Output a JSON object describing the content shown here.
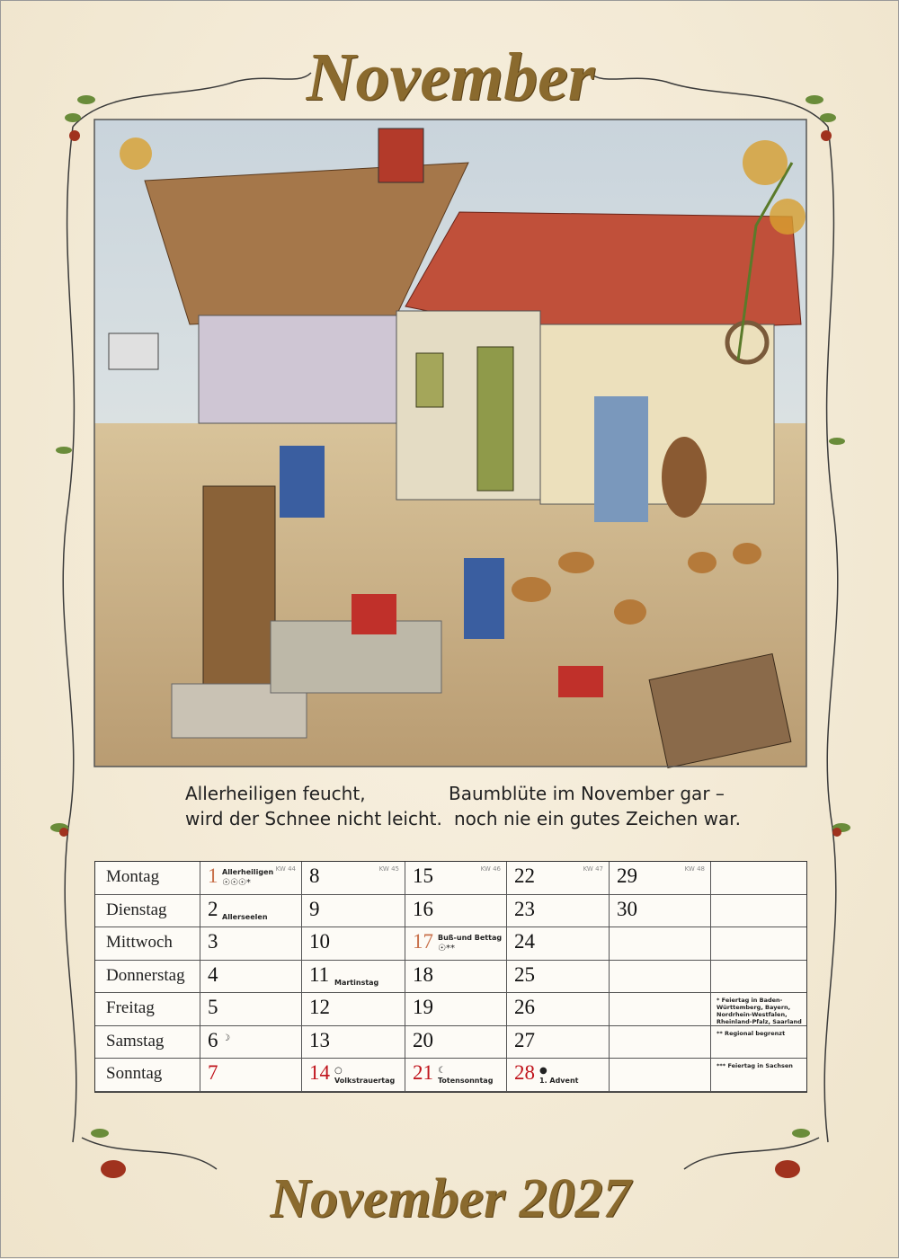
{
  "header": {
    "title": "November"
  },
  "quotes": [
    {
      "lines": [
        "Allerheiligen feucht,",
        "wird der Schnee nicht leicht."
      ]
    },
    {
      "lines": [
        "Baumblüte im November gar –",
        "noch nie ein gutes Zeichen war."
      ]
    }
  ],
  "calendar": {
    "weekdays": [
      "Montag",
      "Dienstag",
      "Mittwoch",
      "Donnerstag",
      "Freitag",
      "Samstag",
      "Sonntag"
    ],
    "weeks": [
      {
        "kw": "KW 44",
        "days": [
          {
            "day": 1,
            "color": "#c8704a",
            "note": "Allerheiligen",
            "symbol": "☉☉☉*"
          },
          {
            "day": 2,
            "note": "Allerseelen"
          },
          {
            "day": 3
          },
          {
            "day": 4
          },
          {
            "day": 5
          },
          {
            "day": 6,
            "symbol": "☽"
          },
          {
            "day": 7,
            "color": "#c0141c"
          }
        ]
      },
      {
        "kw": "KW 45",
        "days": [
          {
            "day": 8
          },
          {
            "day": 9
          },
          {
            "day": 10
          },
          {
            "day": 11,
            "note": "Martinstag"
          },
          {
            "day": 12
          },
          {
            "day": 13
          },
          {
            "day": 14,
            "color": "#c0141c",
            "symbol": "○",
            "note": "Volkstrauertag"
          }
        ]
      },
      {
        "kw": "KW 46",
        "days": [
          {
            "day": 15
          },
          {
            "day": 16
          },
          {
            "day": 17,
            "color": "#c8704a",
            "note": "Buß-und Bettag",
            "symbol": "☉**"
          },
          {
            "day": 18
          },
          {
            "day": 19
          },
          {
            "day": 20
          },
          {
            "day": 21,
            "color": "#c0141c",
            "symbol": "☾",
            "note": "Totensonntag"
          }
        ]
      },
      {
        "kw": "KW 47",
        "days": [
          {
            "day": 22
          },
          {
            "day": 23
          },
          {
            "day": 24
          },
          {
            "day": 25
          },
          {
            "day": 26
          },
          {
            "day": 27
          },
          {
            "day": 28,
            "color": "#c0141c",
            "symbol": "●",
            "note": "1. Advent"
          }
        ]
      },
      {
        "kw": "KW 48",
        "days": [
          {
            "day": 29
          },
          {
            "day": 30
          },
          null,
          null,
          null,
          null,
          null
        ]
      }
    ],
    "footnotes": [
      null,
      null,
      null,
      null,
      "* Feiertag in Baden-Württemberg, Bayern, Nordrhein-Westfalen, Rheinland-Pfalz, Saarland",
      "** Regional begrenzt",
      "*** Feiertag in Sachsen"
    ]
  },
  "footer": {
    "title": "November 2027"
  }
}
